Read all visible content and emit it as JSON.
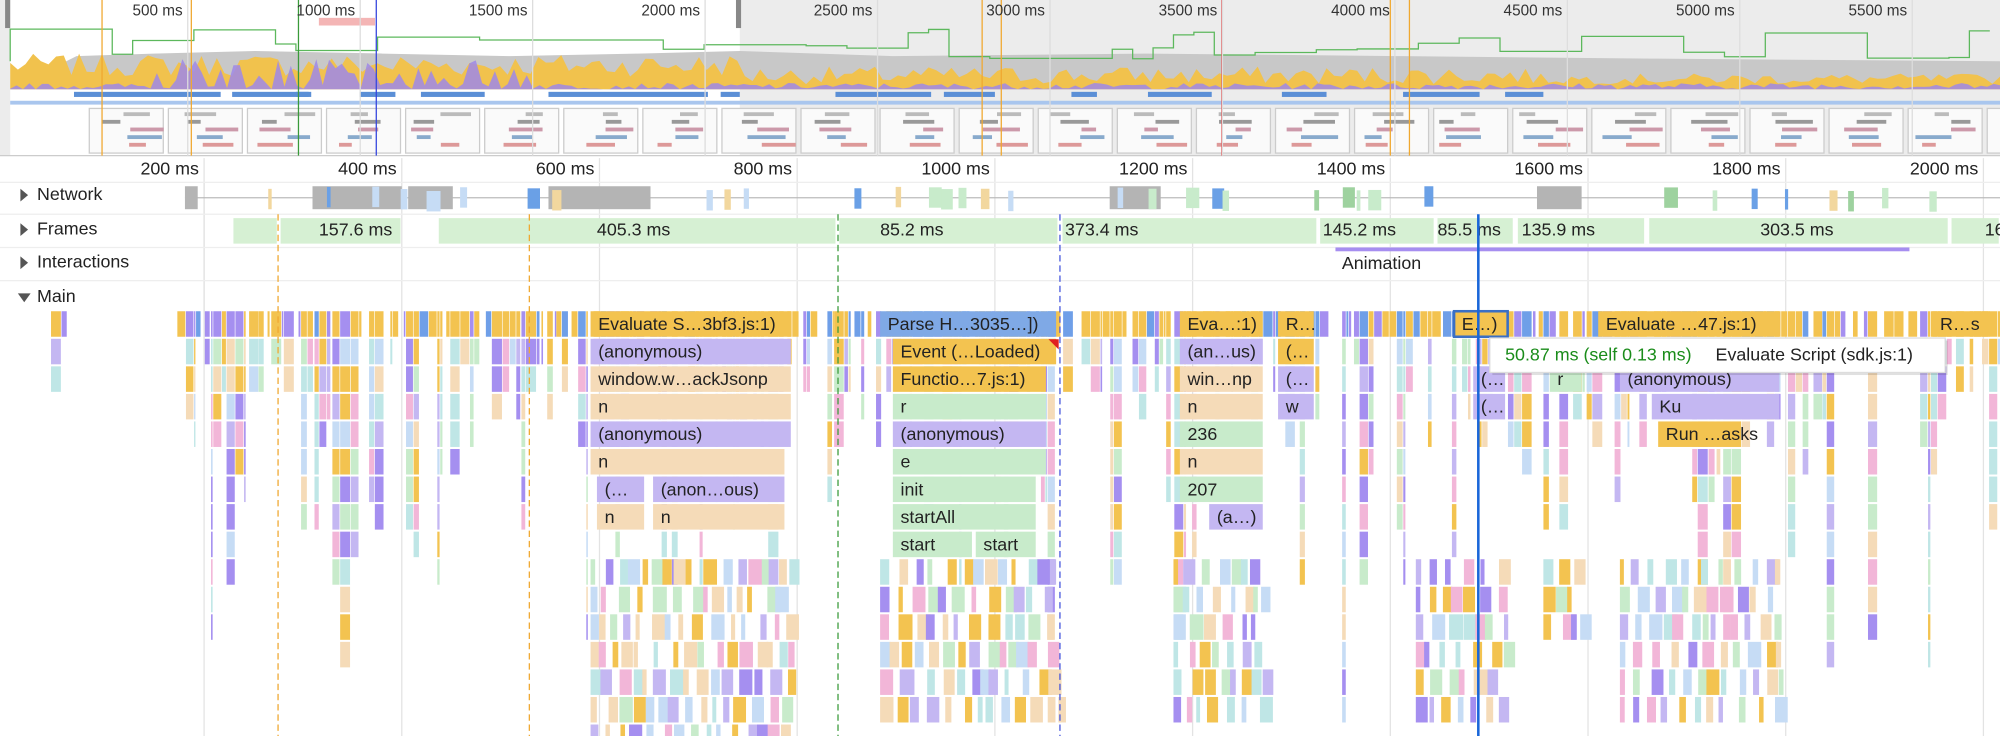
{
  "overview": {
    "ticks": [
      "500 ms",
      "1000 ms",
      "1500 ms",
      "2000 ms",
      "2500 ms",
      "3000 ms",
      "3500 ms",
      "4000 ms",
      "4500 ms",
      "5000 ms",
      "5500 ms"
    ]
  },
  "ruler": {
    "ticks": [
      "200 ms",
      "400 ms",
      "600 ms",
      "800 ms",
      "1000 ms",
      "1200 ms",
      "1400 ms",
      "1600 ms",
      "1800 ms",
      "2000 ms"
    ]
  },
  "tracks": [
    "Network",
    "Frames",
    "Interactions",
    "Main"
  ],
  "frames": [
    "157.6 ms",
    "405.3 ms",
    "85.2 ms",
    "373.4 ms",
    "145.2 ms",
    "85.5 ms",
    "135.9 ms",
    "303.5 ms",
    "16"
  ],
  "interactions": {
    "label": "Animation"
  },
  "flame": [
    [
      "Evaluate S…3bf3.js:1)",
      "Parse H…3035…])",
      "Eva…:1)",
      "R…",
      "E…)",
      "Evaluate …47.js:1)",
      "R…s"
    ],
    [
      "(anonymous)",
      "Event (…Loaded)",
      "(an…us)",
      "(…"
    ],
    [
      "window.w…ackJsonp",
      "Functio…7.js:1)",
      "win…np",
      "(…",
      "(…",
      "r",
      "(anonymous)"
    ],
    [
      "n",
      "r",
      "n",
      "w",
      "(…",
      "Ku"
    ],
    [
      "(anonymous)",
      "(anonymous)",
      "236",
      "Run …asks"
    ],
    [
      "n",
      "e",
      "n"
    ],
    [
      "(…",
      "(anon…ous)",
      "init",
      "207"
    ],
    [
      "n",
      "n",
      "startAll",
      "(a…)"
    ],
    [
      "start",
      "start"
    ]
  ],
  "tooltip": {
    "time": "50.87 ms (self 0.13 ms)",
    "name": "Evaluate Script (sdk.js:1)"
  }
}
